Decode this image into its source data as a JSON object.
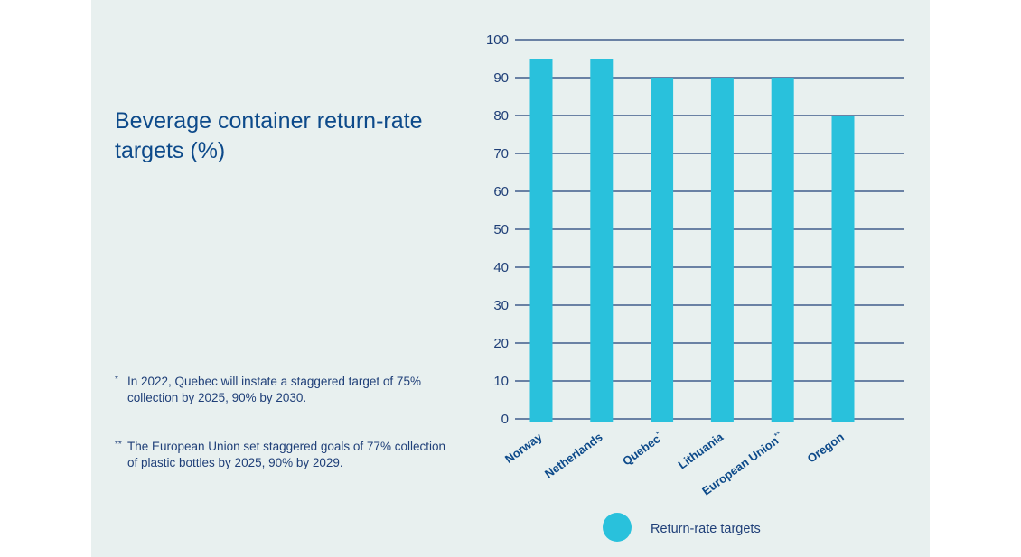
{
  "title": "Beverage container return-rate targets (%)",
  "footnotes": [
    {
      "mark": "*",
      "text": "In 2022, Quebec will instate a staggered target of 75% collection by 2025, 90% by 2030."
    },
    {
      "mark": "**",
      "text": "The European Union set staggered goals of 77% collection of plastic bottles by 2025, 90% by 2029."
    }
  ],
  "colors": {
    "bar": "#29c1dc",
    "grid": "#1f3f78",
    "title": "#0d4a8a",
    "background": "#e8f0ef"
  },
  "chart_data": {
    "type": "bar",
    "title": "Beverage container return-rate targets (%)",
    "categories": [
      "Norway",
      "Netherlands",
      "Quebec*",
      "Lithuania",
      "European Union**",
      "Oregon"
    ],
    "series": [
      {
        "name": "Return-rate targets",
        "values": [
          95,
          95,
          90,
          90,
          90,
          80
        ]
      }
    ],
    "ylim": [
      0,
      100
    ],
    "yticks": [
      0,
      10,
      20,
      30,
      40,
      50,
      60,
      70,
      80,
      90,
      100
    ],
    "xlabel": "",
    "ylabel": "",
    "grid": true,
    "legend": "bottom"
  }
}
